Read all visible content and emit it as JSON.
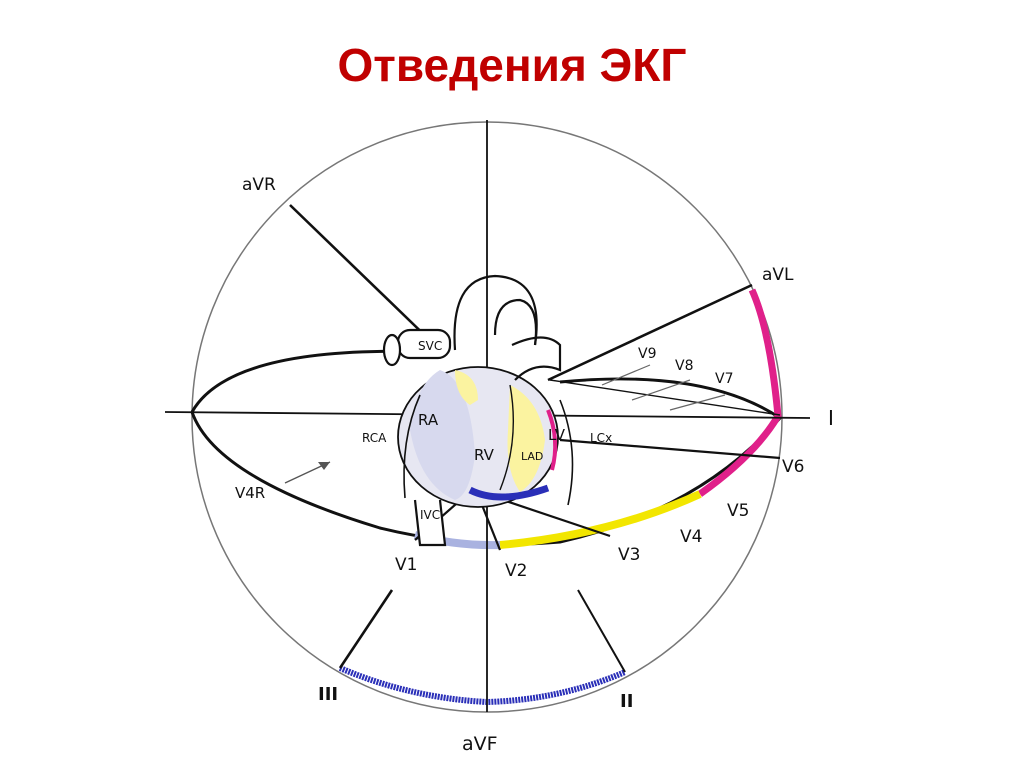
{
  "title": "Отведения ЭКГ",
  "limb_leads": {
    "avr": "aVR",
    "avl": "aVL",
    "i": "I",
    "ii": "II",
    "iii": "III",
    "avf": "aVF"
  },
  "chest_leads": {
    "v1": "V1",
    "v2": "V2",
    "v3": "V3",
    "v4": "V4",
    "v5": "V5",
    "v6": "V6",
    "v7": "V7",
    "v8": "V8",
    "v9": "V9",
    "v4r": "V4R"
  },
  "anatomy": {
    "ra": "RA",
    "rv": "RV",
    "lv": "LV",
    "svc": "SVC",
    "ivc": "IVC",
    "rca": "RCA",
    "lad": "LAD",
    "lcx": "LCx"
  },
  "colors": {
    "title": "#c00000",
    "lateral": "#e0208a",
    "anterior": "#f2e600",
    "inferior": "#2a2fb8",
    "septal": "#a9b2e0"
  }
}
